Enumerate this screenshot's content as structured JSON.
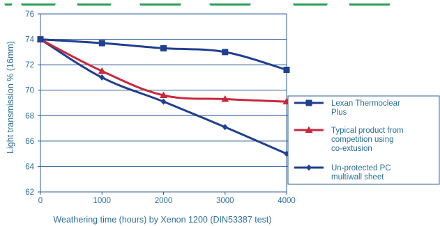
{
  "chart_data": {
    "type": "line",
    "title": "",
    "xlabel": "Weathering time (hours) by Xenon 1200 (DIN53387 test)",
    "ylabel": "Light transmission % (16mm)",
    "xlim": [
      0,
      4000
    ],
    "ylim": [
      62,
      76
    ],
    "x_ticks": [
      0,
      1000,
      2000,
      3000,
      4000
    ],
    "y_ticks": [
      62,
      64,
      66,
      68,
      70,
      72,
      74,
      76
    ],
    "grid": "horizontal",
    "legend_position": "right",
    "series": [
      {
        "name": "Lexan Thermoclear Plus",
        "name_lines": [
          "Lexan Thermoclear",
          "Plus"
        ],
        "color": "#1f3f8f",
        "marker": "square",
        "x": [
          0,
          1000,
          2000,
          3000,
          4000
        ],
        "y": [
          74.0,
          73.7,
          73.3,
          73.0,
          71.6
        ]
      },
      {
        "name": "Typical product from competition using co-extusion",
        "name_lines": [
          "Typical product from",
          "competition using",
          "co-extusion"
        ],
        "color": "#c8283e",
        "marker": "triangle",
        "x": [
          0,
          1000,
          2000,
          3000,
          4000
        ],
        "y": [
          74.0,
          71.5,
          69.6,
          69.3,
          69.1
        ]
      },
      {
        "name": "Un-protected PC multiwall sheet",
        "name_lines": [
          "Un-protected PC",
          "multiwall sheet"
        ],
        "color": "#1f3f8f",
        "marker": "diamond",
        "x": [
          0,
          1000,
          2000,
          3000,
          4000
        ],
        "y": [
          74.0,
          71.0,
          69.1,
          67.1,
          65.0
        ]
      }
    ]
  },
  "colors": {
    "grid": "#2d5d9a",
    "axis": "#2d5d9a",
    "text": "#2d6f97",
    "top_strip": "#2a9d57"
  }
}
